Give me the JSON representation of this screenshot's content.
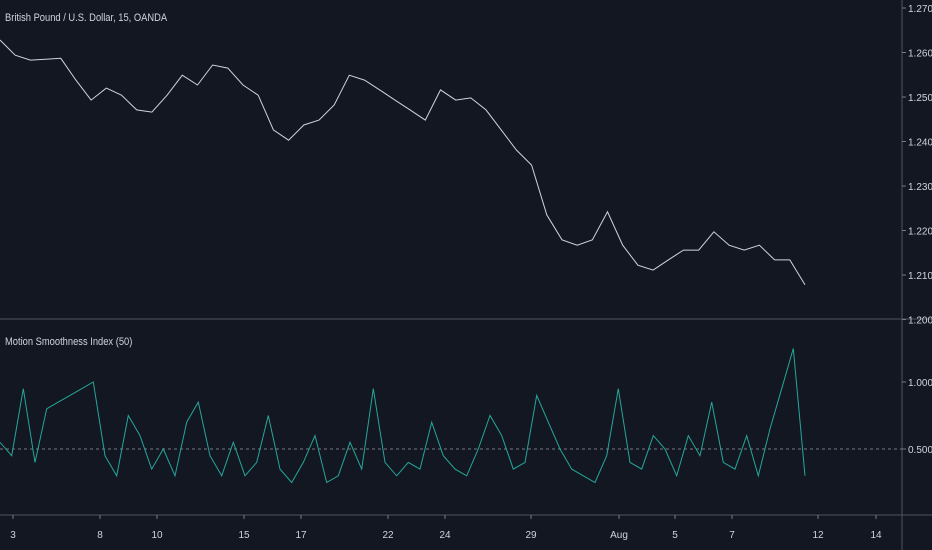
{
  "chart_data": [
    {
      "type": "line",
      "title": "British Pound / U.S. Dollar, 15, OANDA",
      "ylim": [
        1.2,
        1.27
      ],
      "yticks": [
        "1.2700",
        "1.2600",
        "1.2500",
        "1.2400",
        "1.2300",
        "1.2200",
        "1.2100",
        "1.2000"
      ],
      "color": "#d1d4dc",
      "values": [
        1.2628,
        1.2594,
        1.2583,
        1.2585,
        1.2587,
        1.2538,
        1.2493,
        1.252,
        1.2504,
        1.2471,
        1.2466,
        1.2504,
        1.2549,
        1.2527,
        1.2572,
        1.2565,
        1.2527,
        1.2504,
        1.2426,
        1.2403,
        1.2437,
        1.2448,
        1.2482,
        1.2549,
        1.2538,
        1.2516,
        1.2493,
        1.2471,
        1.2448,
        1.2516,
        1.2493,
        1.2498,
        1.2471,
        1.2426,
        1.2381,
        1.2347,
        1.2235,
        1.2179,
        1.2167,
        1.2179,
        1.2242,
        1.2167,
        1.2122,
        1.2111,
        1.2134,
        1.2156,
        1.2156,
        1.2197,
        1.2167,
        1.2156,
        1.2167,
        1.2134,
        1.2134,
        1.2078
      ]
    },
    {
      "type": "line",
      "title": "Motion Smoothness Index (50)",
      "ylim": [
        0.16,
        1.48
      ],
      "yticks": [
        "1.0000",
        "0.5000"
      ],
      "hline": 0.5,
      "color": "#26a69a",
      "values": [
        0.55,
        0.45,
        0.95,
        0.4,
        0.8,
        0.85,
        0.9,
        0.95,
        1.0,
        0.45,
        0.3,
        0.75,
        0.6,
        0.35,
        0.5,
        0.3,
        0.7,
        0.85,
        0.45,
        0.3,
        0.55,
        0.3,
        0.4,
        0.75,
        0.35,
        0.25,
        0.4,
        0.6,
        0.25,
        0.3,
        0.55,
        0.35,
        0.95,
        0.4,
        0.3,
        0.4,
        0.35,
        0.7,
        0.45,
        0.35,
        0.3,
        0.5,
        0.75,
        0.6,
        0.35,
        0.4,
        0.9,
        0.7,
        0.5,
        0.35,
        0.3,
        0.25,
        0.45,
        0.95,
        0.4,
        0.35,
        0.6,
        0.5,
        0.3,
        0.6,
        0.45,
        0.85,
        0.4,
        0.35,
        0.6,
        0.3,
        0.65,
        0.95,
        1.25,
        0.3
      ]
    }
  ],
  "time_axis": [
    "3",
    "8",
    "10",
    "15",
    "17",
    "22",
    "24",
    "29",
    "Aug",
    "5",
    "7",
    "12",
    "14"
  ]
}
